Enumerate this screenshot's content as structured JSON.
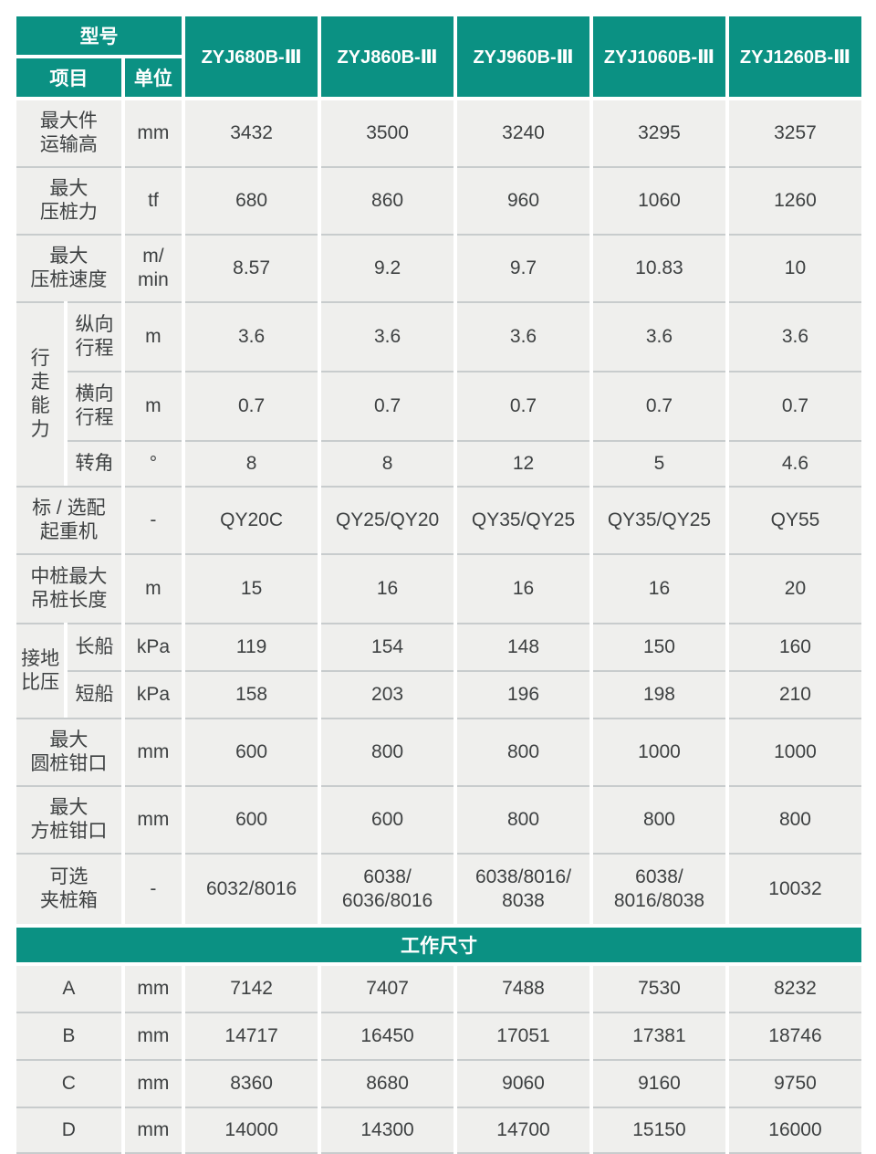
{
  "colors": {
    "header_teal": "#0b9183",
    "cell_bg": "#efefed",
    "row_line": "#c8cccd",
    "cell_text": "#3e4142"
  },
  "header": {
    "model_label": "型号",
    "item_label": "项目",
    "unit_label": "单位",
    "models": [
      "ZYJ680B-Ⅲ",
      "ZYJ860B-Ⅲ",
      "ZYJ960B-Ⅲ",
      "ZYJ1060B-Ⅲ",
      "ZYJ1260B-Ⅲ"
    ]
  },
  "spec_rows": [
    {
      "label": "最大件\n运输高",
      "unit": "mm",
      "values": [
        "3432",
        "3500",
        "3240",
        "3295",
        "3257"
      ]
    },
    {
      "label": "最大\n压桩力",
      "unit": "tf",
      "values": [
        "680",
        "860",
        "960",
        "1060",
        "1260"
      ]
    },
    {
      "label": "最大\n压桩速度",
      "unit": "m/\nmin",
      "values": [
        "8.57",
        "9.2",
        "9.7",
        "10.83",
        "10"
      ]
    }
  ],
  "walk_group": {
    "label": "行\n走\n能\n力",
    "rows": [
      {
        "label": "纵向\n行程",
        "unit": "m",
        "values": [
          "3.6",
          "3.6",
          "3.6",
          "3.6",
          "3.6"
        ]
      },
      {
        "label": "横向\n行程",
        "unit": "m",
        "values": [
          "0.7",
          "0.7",
          "0.7",
          "0.7",
          "0.7"
        ]
      },
      {
        "label": "转角",
        "unit": "°",
        "values": [
          "8",
          "8",
          "12",
          "5",
          "4.6"
        ]
      }
    ]
  },
  "spec_rows2": [
    {
      "label": "标 / 选配\n起重机",
      "unit": "-",
      "values": [
        "QY20C",
        "QY25/QY20",
        "QY35/QY25",
        "QY35/QY25",
        "QY55"
      ]
    },
    {
      "label": "中桩最大\n吊桩长度",
      "unit": "m",
      "values": [
        "15",
        "16",
        "16",
        "16",
        "20"
      ]
    }
  ],
  "ground_group": {
    "label": "接地\n比压",
    "rows": [
      {
        "label": "长船",
        "unit": "kPa",
        "values": [
          "119",
          "154",
          "148",
          "150",
          "160"
        ]
      },
      {
        "label": "短船",
        "unit": "kPa",
        "values": [
          "158",
          "203",
          "196",
          "198",
          "210"
        ]
      }
    ]
  },
  "spec_rows3": [
    {
      "label": "最大\n圆桩钳口",
      "unit": "mm",
      "values": [
        "600",
        "800",
        "800",
        "1000",
        "1000"
      ]
    },
    {
      "label": "最大\n方桩钳口",
      "unit": "mm",
      "values": [
        "600",
        "600",
        "800",
        "800",
        "800"
      ]
    },
    {
      "label": "可选\n夹桩箱",
      "unit": "-",
      "values": [
        "6032/8016",
        "6038/\n6036/8016",
        "6038/8016/\n8038",
        "6038/\n8016/8038",
        "10032"
      ]
    }
  ],
  "section": {
    "title": "工作尺寸"
  },
  "dim_rows": [
    {
      "label": "A",
      "unit": "mm",
      "values": [
        "7142",
        "7407",
        "7488",
        "7530",
        "8232"
      ]
    },
    {
      "label": "B",
      "unit": "mm",
      "values": [
        "14717",
        "16450",
        "17051",
        "17381",
        "18746"
      ]
    },
    {
      "label": "C",
      "unit": "mm",
      "values": [
        "8360",
        "8680",
        "9060",
        "9160",
        "9750"
      ]
    },
    {
      "label": "D",
      "unit": "mm",
      "values": [
        "14000",
        "14300",
        "14700",
        "15150",
        "16000"
      ]
    }
  ]
}
